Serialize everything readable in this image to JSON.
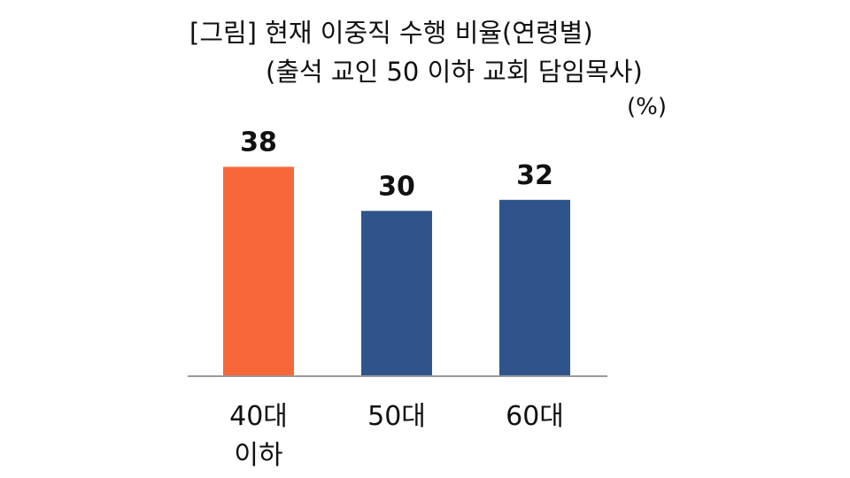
{
  "chart_data": {
    "type": "bar",
    "title": "[그림] 현재 이중직 수행 비율(연령별)",
    "subtitle": "(출석 교인 50 이하 교회 담임목사)",
    "unit": "(%)",
    "categories": [
      [
        "40대",
        "이하"
      ],
      [
        "50대"
      ],
      [
        "60대"
      ]
    ],
    "values": [
      38,
      30,
      32
    ],
    "colors": [
      "#F8673A",
      "#2F548B",
      "#2F548B"
    ],
    "ylim": [
      0,
      40
    ],
    "grid": false,
    "legend": "none"
  }
}
